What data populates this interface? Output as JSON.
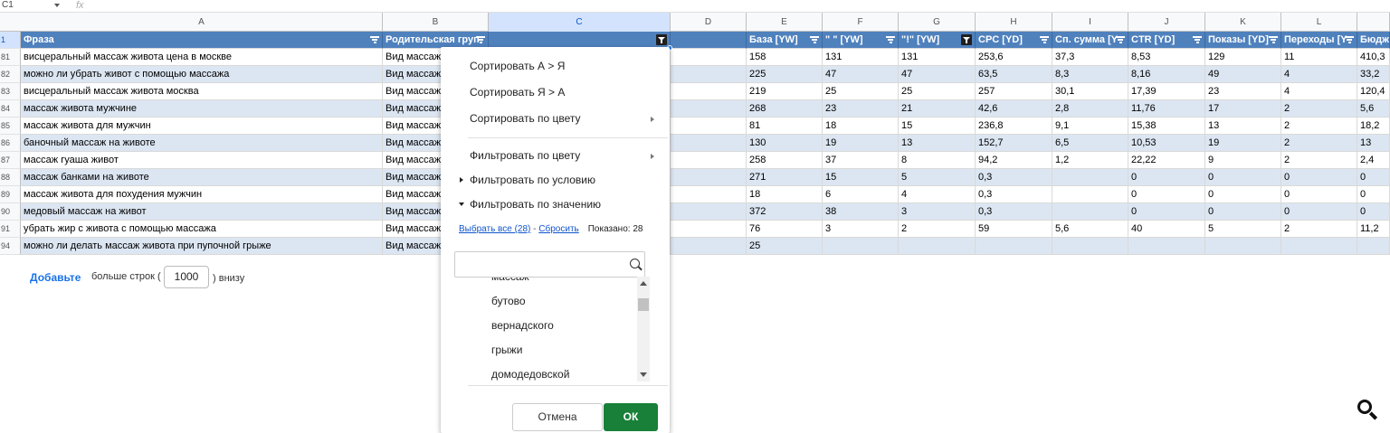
{
  "toolbar": {
    "namebox": "C1",
    "fx": "fx"
  },
  "columns": [
    "A",
    "B",
    "C",
    "D",
    "E",
    "F",
    "G",
    "H",
    "I",
    "J",
    "K",
    "L",
    ""
  ],
  "header_row": {
    "num": "1",
    "cells": [
      "Фраза",
      "Родительская груп",
      "",
      "",
      "База [YW]",
      "\" \" [YW]",
      "\"!\" [YW]",
      "CPC [YD]",
      "Сп. сумма [Y",
      "CTR [YD]",
      "Показы [YD]",
      "Переходы [Y",
      "Бюдж"
    ]
  },
  "rows": [
    {
      "num": "81",
      "cells": [
        "висцеральный массаж живота цена в москве",
        "Вид массаж",
        "",
        "",
        "158",
        "131",
        "131",
        "253,6",
        "37,3",
        "8,53",
        "129",
        "11",
        "410,3"
      ]
    },
    {
      "num": "82",
      "cells": [
        "можно ли убрать живот с помощью массажа",
        "Вид массаж",
        "",
        "",
        "225",
        "47",
        "47",
        "63,5",
        "8,3",
        "8,16",
        "49",
        "4",
        "33,2"
      ]
    },
    {
      "num": "83",
      "cells": [
        "висцеральный массаж живота москва",
        "Вид массаж",
        "",
        "",
        "219",
        "25",
        "25",
        "257",
        "30,1",
        "17,39",
        "23",
        "4",
        "120,4"
      ]
    },
    {
      "num": "84",
      "cells": [
        "массаж живота мужчине",
        "Вид массаж",
        "",
        "",
        "268",
        "23",
        "21",
        "42,6",
        "2,8",
        "11,76",
        "17",
        "2",
        "5,6"
      ]
    },
    {
      "num": "85",
      "cells": [
        "массаж живота для мужчин",
        "Вид массаж",
        "",
        "",
        "81",
        "18",
        "15",
        "236,8",
        "9,1",
        "15,38",
        "13",
        "2",
        "18,2"
      ]
    },
    {
      "num": "86",
      "cells": [
        "баночный массаж на животе",
        "Вид массаж",
        "",
        "",
        "130",
        "19",
        "13",
        "152,7",
        "6,5",
        "10,53",
        "19",
        "2",
        "13"
      ]
    },
    {
      "num": "87",
      "cells": [
        "массаж гуаша живот",
        "Вид массаж",
        "",
        "",
        "258",
        "37",
        "8",
        "94,2",
        "1,2",
        "22,22",
        "9",
        "2",
        "2,4"
      ]
    },
    {
      "num": "88",
      "cells": [
        "массаж банками на животе",
        "Вид массаж",
        "",
        "",
        "271",
        "15",
        "5",
        "0,3",
        "",
        "0",
        "0",
        "0",
        "0"
      ]
    },
    {
      "num": "89",
      "cells": [
        "массаж живота для похудения мужчин",
        "Вид массаж",
        "",
        "",
        "18",
        "6",
        "4",
        "0,3",
        "",
        "0",
        "0",
        "0",
        "0"
      ]
    },
    {
      "num": "90",
      "cells": [
        "медовый массаж на живот",
        "Вид массаж",
        "",
        "",
        "372",
        "38",
        "3",
        "0,3",
        "",
        "0",
        "0",
        "0",
        "0"
      ]
    },
    {
      "num": "91",
      "cells": [
        "убрать жир с живота с помощью массажа",
        "Вид массаж",
        "",
        "",
        "76",
        "3",
        "2",
        "59",
        "5,6",
        "40",
        "5",
        "2",
        "11,2"
      ]
    },
    {
      "num": "94",
      "cells": [
        "можно ли делать массаж живота при пупочной грыже",
        "Вид массаж",
        "",
        "",
        "25",
        "",
        "",
        "",
        "",
        "",
        "",
        "",
        ""
      ]
    }
  ],
  "add_rows": {
    "button": "Добавьте",
    "text_before": "больше строк (",
    "value": "1000",
    "text_after": ") внизу"
  },
  "filter_menu": {
    "sort_az": "Сортировать А > Я",
    "sort_za": "Сортировать Я > А",
    "sort_color": "Сортировать по цвету",
    "filter_color": "Фильтровать по цвету",
    "filter_condition": "Фильтровать по условию",
    "filter_value": "Фильтровать по значению",
    "select_all": "Выбрать все (28)",
    "dash": " - ",
    "reset": "Сбросить",
    "shown": "Показано: 28",
    "search_placeholder": "",
    "values": [
      "массаж",
      "бутово",
      "вернадского",
      "грыжи",
      "домодедовской"
    ],
    "cancel": "Отмена",
    "ok": "ОК"
  }
}
